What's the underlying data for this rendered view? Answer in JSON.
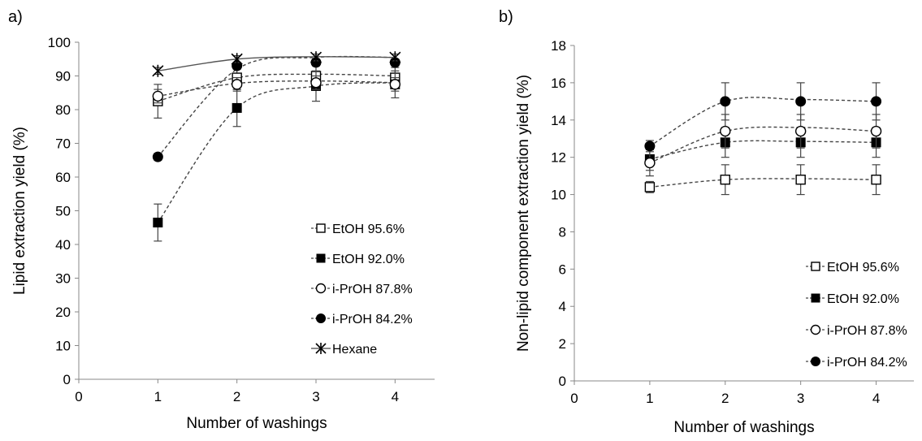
{
  "chart_data": [
    {
      "panel_label": "a)",
      "type": "line",
      "xlabel": "Number of washings",
      "ylabel": "Lipid extraction yield (%)",
      "xlim": [
        0,
        4.5
      ],
      "ylim": [
        0,
        100
      ],
      "xticks": [
        0,
        1,
        2,
        3,
        4
      ],
      "yticks": [
        0,
        10,
        20,
        30,
        40,
        50,
        60,
        70,
        80,
        90,
        100
      ],
      "grid": false,
      "legend_position": "bottom-right",
      "series": [
        {
          "name": "EtOH 95.6%",
          "marker": "open-square",
          "line": "dashed",
          "x": [
            1,
            2,
            3,
            4
          ],
          "y": [
            82.5,
            89.5,
            90.0,
            89.5
          ],
          "err": [
            5.0,
            3.5,
            3.5,
            3.0
          ],
          "fit": [
            82.5,
            89.5,
            90.5,
            90.0
          ]
        },
        {
          "name": "EtOH 92.0%",
          "marker": "filled-square",
          "line": "dashed",
          "x": [
            1,
            2,
            3,
            4
          ],
          "y": [
            46.5,
            80.5,
            87.0,
            87.5
          ],
          "err": [
            5.5,
            5.5,
            4.5,
            4.0
          ],
          "fit": [
            46.5,
            80.5,
            87.0,
            88.0
          ]
        },
        {
          "name": "i-PrOH 87.8%",
          "marker": "open-circle",
          "line": "dashed",
          "x": [
            1,
            2,
            3,
            4
          ],
          "y": [
            84.0,
            87.5,
            88.0,
            87.5
          ],
          "err": [
            2.0,
            2.0,
            2.0,
            2.0
          ],
          "fit": [
            84.0,
            87.8,
            88.5,
            88.0
          ]
        },
        {
          "name": "i-PrOH 84.2%",
          "marker": "filled-circle",
          "line": "dashed",
          "x": [
            1,
            2,
            3,
            4
          ],
          "y": [
            66.0,
            93.0,
            94.0,
            94.0
          ],
          "err": [
            1.0,
            1.0,
            1.0,
            1.0
          ],
          "fit": [
            66.0,
            92.0,
            95.5,
            95.5
          ]
        },
        {
          "name": "Hexane",
          "marker": "asterisk",
          "line": "solid",
          "x": [
            1,
            2,
            3,
            4
          ],
          "y": [
            91.5,
            95.0,
            95.5,
            95.5
          ],
          "err": [
            1.0,
            1.0,
            1.0,
            1.0
          ],
          "fit": [
            91.5,
            95.0,
            95.7,
            95.5
          ]
        }
      ]
    },
    {
      "panel_label": "b)",
      "type": "line",
      "xlabel": "Number of washings",
      "ylabel": "Non-lipid component extraction yield (%)",
      "xlim": [
        0,
        4.5
      ],
      "ylim": [
        0,
        18
      ],
      "xticks": [
        0,
        1,
        2,
        3,
        4
      ],
      "yticks": [
        0,
        2,
        4,
        6,
        8,
        10,
        12,
        14,
        16,
        18
      ],
      "grid": false,
      "legend_position": "bottom-right",
      "series": [
        {
          "name": "EtOH 95.6%",
          "marker": "open-square",
          "line": "dashed",
          "x": [
            1,
            2,
            3,
            4
          ],
          "y": [
            10.4,
            10.8,
            10.8,
            10.8
          ],
          "err": [
            0.3,
            0.8,
            0.8,
            0.8
          ],
          "fit": [
            10.4,
            10.8,
            10.85,
            10.8
          ]
        },
        {
          "name": "EtOH 92.0%",
          "marker": "filled-square",
          "line": "dashed",
          "x": [
            1,
            2,
            3,
            4
          ],
          "y": [
            11.9,
            12.8,
            12.8,
            12.8
          ],
          "err": [
            0.6,
            0.8,
            0.8,
            0.8
          ],
          "fit": [
            11.9,
            12.8,
            12.85,
            12.8
          ]
        },
        {
          "name": "i-PrOH 87.8%",
          "marker": "open-circle",
          "line": "dashed",
          "x": [
            1,
            2,
            3,
            4
          ],
          "y": [
            11.7,
            13.4,
            13.4,
            13.4
          ],
          "err": [
            0.7,
            0.9,
            0.9,
            0.9
          ],
          "fit": [
            11.7,
            13.4,
            13.6,
            13.4
          ]
        },
        {
          "name": "i-PrOH 84.2%",
          "marker": "filled-circle",
          "line": "dashed",
          "x": [
            1,
            2,
            3,
            4
          ],
          "y": [
            12.6,
            15.0,
            15.0,
            15.0
          ],
          "err": [
            0.3,
            1.0,
            1.0,
            1.0
          ],
          "fit": [
            12.6,
            15.0,
            15.1,
            15.0
          ]
        }
      ]
    }
  ]
}
